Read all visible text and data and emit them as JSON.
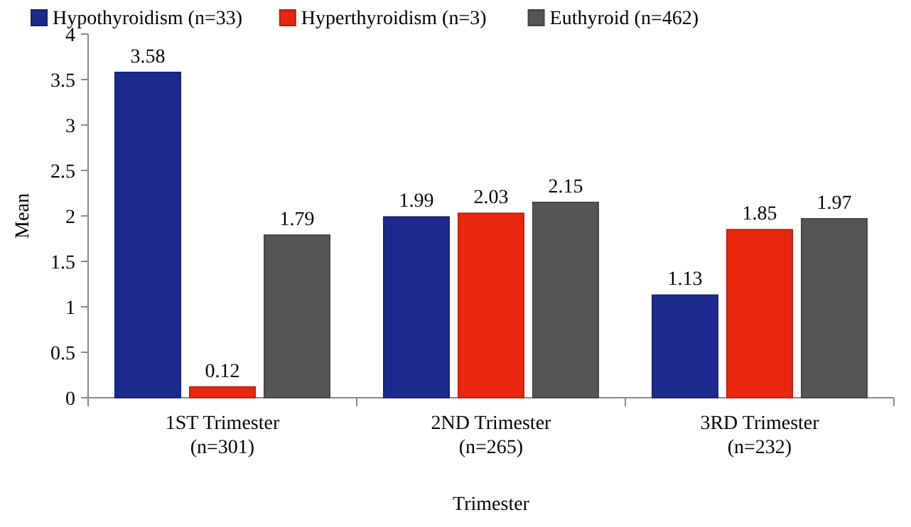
{
  "chart_data": {
    "type": "bar",
    "xlabel": "Trimester",
    "ylabel": "Mean",
    "categories": [
      "1ST Trimester\n(n=301)",
      "2ND Trimester\n(n=265)",
      "3RD Trimester\n(n=232)"
    ],
    "series": [
      {
        "name": "Hypothyroidism (n=33)",
        "color": "#1b2a8c",
        "values": [
          3.58,
          1.99,
          1.13
        ]
      },
      {
        "name": "Hyperthyroidism (n=3)",
        "color": "#e8270e",
        "values": [
          0.12,
          2.03,
          1.85
        ]
      },
      {
        "name": "Euthyroid (n=462)",
        "color": "#555555",
        "values": [
          1.79,
          2.15,
          1.97
        ]
      }
    ],
    "ylim": [
      0,
      4
    ],
    "yticks": [
      0,
      {
        "value": 0.5,
        "label": "0.5"
      },
      1,
      {
        "value": 1.5,
        "label": "1.5"
      },
      2,
      {
        "value": 2.5,
        "label": "2.5"
      },
      3,
      {
        "value": 3.5,
        "label": "3.5"
      },
      4
    ],
    "grid": false,
    "legend": "top left",
    "data_labels": true
  }
}
